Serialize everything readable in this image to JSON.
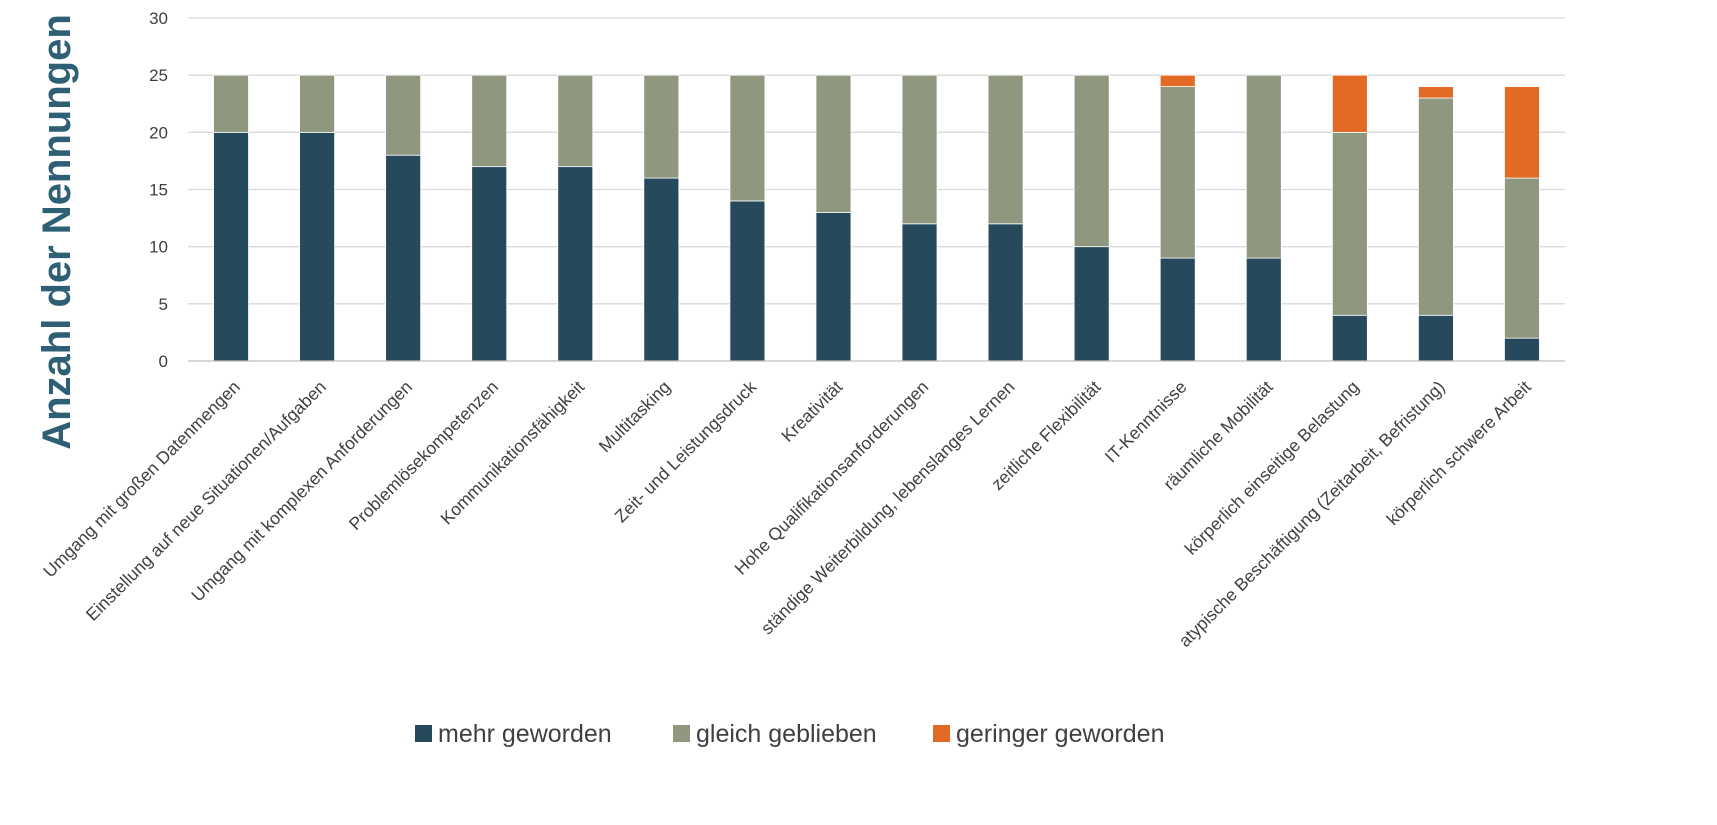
{
  "chart_data": {
    "type": "bar",
    "stacked": true,
    "ylabel": "Anzahl der Nennungen",
    "ylim": [
      0,
      30
    ],
    "yticks": [
      0,
      5,
      10,
      15,
      20,
      25,
      30
    ],
    "grid": true,
    "legend_position": "bottom",
    "categories": [
      "Umgang mit großen Datenmengen",
      "Einstellung auf neue Situationen/Aufgaben",
      "Umgang mit komplexen Anforderungen",
      "Problemlösekompetenzen",
      "Kommunikationsfähigkeit",
      "Multitasking",
      "Zeit- und Leistungsdruck",
      "Kreativität",
      "Hohe Qualifikationsanforderungen",
      "ständige Weiterbildung, lebenslanges Lernen",
      "zeitliche Flexibilität",
      "IT-Kenntnisse",
      "räumliche Mobilität",
      "körperlich einseitige Belastung",
      "atypische Beschäftigung (Zeitarbeit, Befristung)",
      "körperlich schwere Arbeit"
    ],
    "series": [
      {
        "name": "mehr geworden",
        "color": "#264a5c",
        "values": [
          20,
          20,
          18,
          17,
          17,
          16,
          14,
          13,
          12,
          12,
          10,
          9,
          9,
          4,
          4,
          2
        ]
      },
      {
        "name": "gleich geblieben",
        "color": "#8f977f",
        "values": [
          5,
          5,
          7,
          8,
          8,
          9,
          11,
          12,
          13,
          13,
          15,
          15,
          16,
          16,
          19,
          14
        ]
      },
      {
        "name": "geringer geworden",
        "color": "#e36a24",
        "values": [
          0,
          0,
          0,
          0,
          0,
          0,
          0,
          0,
          0,
          0,
          0,
          1,
          0,
          5,
          1,
          8
        ]
      }
    ]
  }
}
